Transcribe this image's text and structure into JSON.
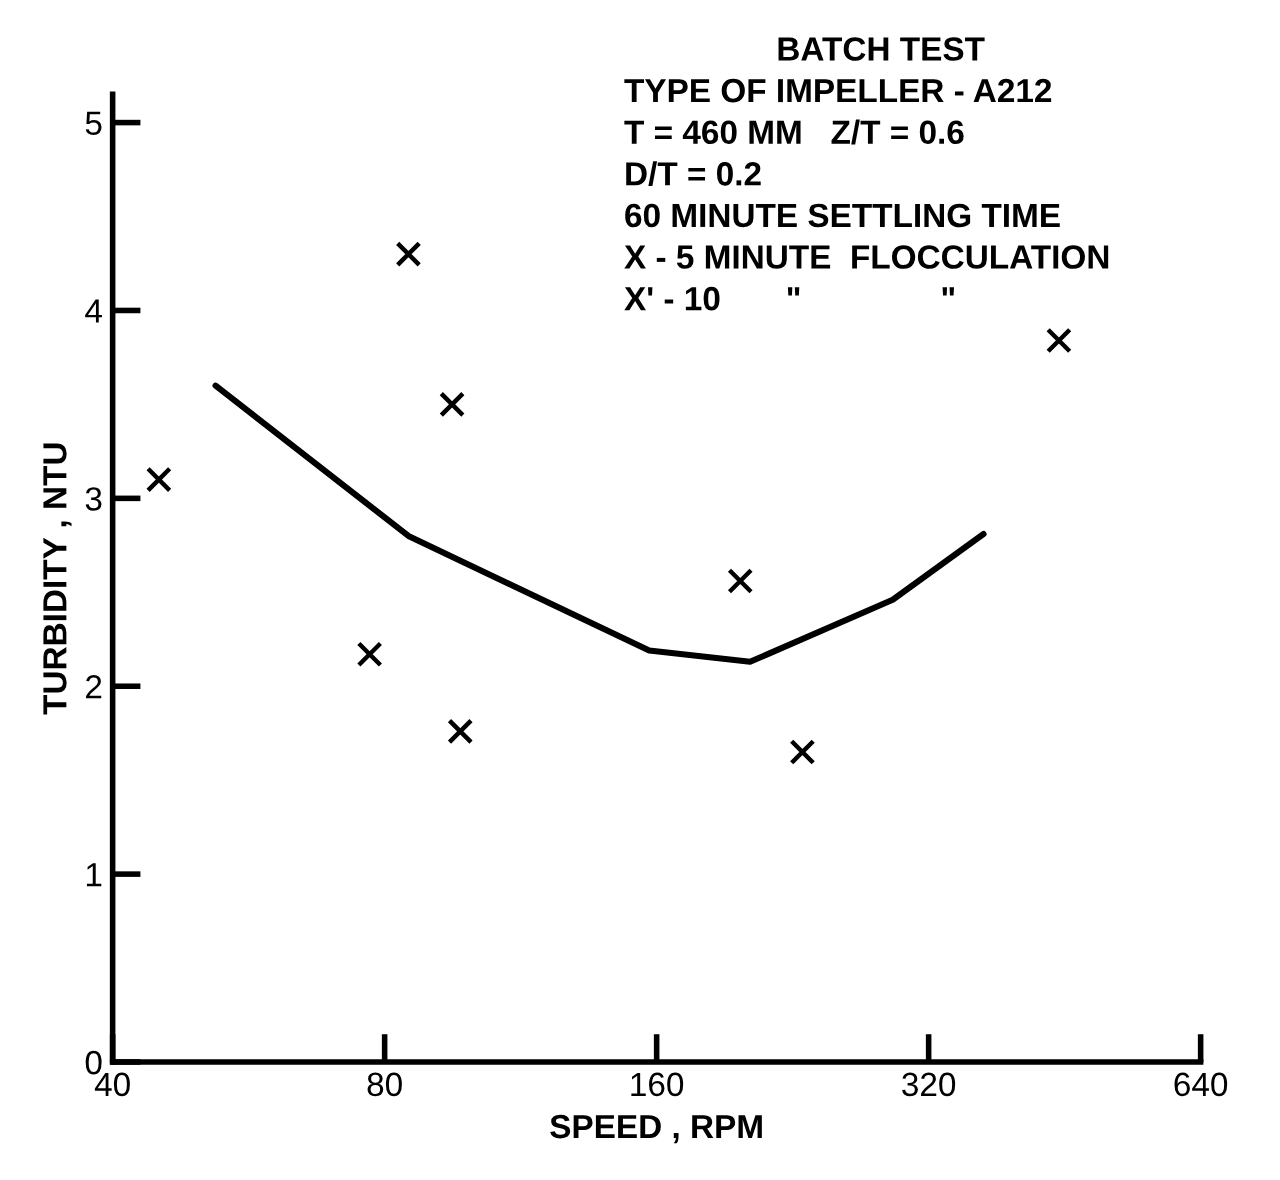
{
  "chart_data": {
    "type": "scatter",
    "xlabel": "SPEED , RPM",
    "ylabel": "TURBIDITY , NTU",
    "log": "x",
    "xlim": [
      40,
      640
    ],
    "xticks": [
      40,
      80,
      160,
      320,
      640
    ],
    "ylim": [
      0,
      5.15
    ],
    "yticks": [
      0,
      1,
      2,
      3,
      4,
      5
    ],
    "grid": false,
    "marker": "cross",
    "series": [
      {
        "x": [
          45,
          85,
          95,
          97,
          446
        ],
        "values": [
          3.1,
          4.3,
          3.5,
          1.76,
          3.84
        ],
        "color": "#000000"
      },
      {
        "x": [
          77,
          198,
          232
        ],
        "values": [
          2.17,
          2.56,
          1.65
        ],
        "color": "#000000"
      },
      {
        "type": "line",
        "x": [
          52,
          85,
          157,
          203,
          292,
          368
        ],
        "values": [
          3.6,
          2.8,
          2.19,
          2.13,
          2.46,
          2.81
        ],
        "color": "#000000",
        "marker": "none",
        "line_style": "solid"
      }
    ],
    "annotations": [
      "BATCH TEST",
      "TYPE OF IMPELLER - A212",
      "T = 460 MM   Z/T = 0.6",
      "D/T = 0.2",
      "60 MINUTE SETTLING TIME",
      "X - 5 MINUTE  FLOCCULATION",
      "X' - 10       \"               \""
    ]
  }
}
